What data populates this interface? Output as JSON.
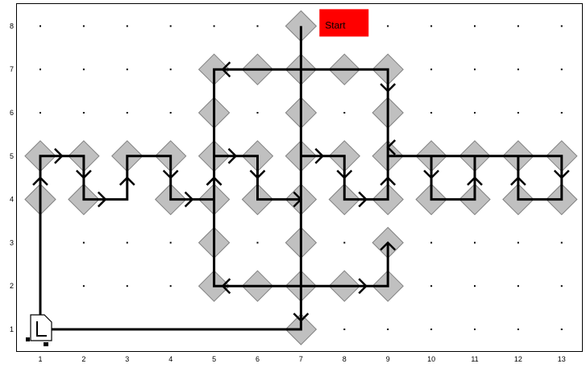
{
  "grid": {
    "cols": 13,
    "rows": 8,
    "x_labels": [
      "1",
      "2",
      "3",
      "4",
      "5",
      "6",
      "7",
      "8",
      "9",
      "10",
      "11",
      "12",
      "13"
    ],
    "y_labels": [
      "1",
      "2",
      "3",
      "4",
      "5",
      "6",
      "7",
      "8"
    ]
  },
  "start": {
    "label": "Start",
    "color": "#ff0000",
    "col": 8,
    "row": 8
  },
  "colors": {
    "tile_fill": "#c0c0c0",
    "tile_stroke": "#808080",
    "path": "#000000",
    "border": "#000000"
  },
  "tiles": [
    [
      7,
      8
    ],
    [
      5,
      7
    ],
    [
      6,
      7
    ],
    [
      7,
      7
    ],
    [
      8,
      7
    ],
    [
      9,
      7
    ],
    [
      5,
      6
    ],
    [
      7,
      6
    ],
    [
      9,
      6
    ],
    [
      1,
      5
    ],
    [
      2,
      5
    ],
    [
      3,
      5
    ],
    [
      4,
      5
    ],
    [
      5,
      5
    ],
    [
      6,
      5
    ],
    [
      7,
      5
    ],
    [
      8,
      5
    ],
    [
      9,
      5
    ],
    [
      10,
      5
    ],
    [
      11,
      5
    ],
    [
      12,
      5
    ],
    [
      13,
      5
    ],
    [
      1,
      4
    ],
    [
      2,
      4
    ],
    [
      4,
      4
    ],
    [
      5,
      4
    ],
    [
      6,
      4
    ],
    [
      7,
      4
    ],
    [
      8,
      4
    ],
    [
      9,
      4
    ],
    [
      10,
      4
    ],
    [
      11,
      4
    ],
    [
      12,
      4
    ],
    [
      13,
      4
    ],
    [
      5,
      3
    ],
    [
      7,
      3
    ],
    [
      9,
      3
    ],
    [
      5,
      2
    ],
    [
      6,
      2
    ],
    [
      7,
      2
    ],
    [
      8,
      2
    ],
    [
      9,
      2
    ],
    [
      7,
      1
    ]
  ],
  "path": [
    [
      7,
      8
    ],
    [
      7,
      1
    ],
    [
      1,
      1
    ],
    [
      1,
      5
    ],
    [
      2,
      5
    ],
    [
      2,
      4
    ],
    [
      3,
      4
    ],
    [
      3,
      5
    ],
    [
      4,
      5
    ],
    [
      4,
      4
    ],
    [
      5,
      4
    ],
    [
      5,
      7
    ],
    [
      9,
      7
    ],
    [
      9,
      5
    ],
    [
      13,
      5
    ],
    [
      13,
      4
    ],
    [
      12,
      4
    ],
    [
      12,
      5
    ],
    [
      11,
      5
    ],
    [
      11,
      4
    ],
    [
      10,
      4
    ],
    [
      10,
      5
    ],
    [
      9,
      5
    ],
    [
      9,
      4
    ],
    [
      8,
      4
    ],
    [
      8,
      5
    ],
    [
      7,
      5
    ],
    [
      7,
      4
    ],
    [
      6,
      4
    ],
    [
      6,
      5
    ],
    [
      5,
      5
    ],
    [
      5,
      2
    ],
    [
      9,
      2
    ],
    [
      9,
      3
    ]
  ],
  "arrows": [
    [
      1,
      4.5,
      "N"
    ],
    [
      1.5,
      5,
      "E"
    ],
    [
      2,
      4.5,
      "S"
    ],
    [
      2.5,
      4,
      "E"
    ],
    [
      3,
      4.5,
      "N"
    ],
    [
      4,
      4.5,
      "S"
    ],
    [
      4.5,
      4,
      "E"
    ],
    [
      5,
      4.5,
      "N"
    ],
    [
      5.2,
      7,
      "W"
    ],
    [
      9,
      6.5,
      "S"
    ],
    [
      9,
      5.2,
      "W"
    ],
    [
      13,
      4.5,
      "S"
    ],
    [
      12,
      4.5,
      "N"
    ],
    [
      11,
      4.5,
      "N"
    ],
    [
      10,
      4.5,
      "S"
    ],
    [
      9,
      4.5,
      "N"
    ],
    [
      8.5,
      4,
      "E"
    ],
    [
      8,
      4.5,
      "S"
    ],
    [
      7.5,
      5,
      "E"
    ],
    [
      7,
      4,
      "E"
    ],
    [
      6,
      4.5,
      "S"
    ],
    [
      5.5,
      5,
      "E"
    ],
    [
      5,
      4.5,
      "N"
    ],
    [
      5.2,
      2,
      "W"
    ],
    [
      8.5,
      2,
      "E"
    ],
    [
      9,
      3,
      "N"
    ],
    [
      7,
      1.2,
      "S"
    ]
  ],
  "turtle": {
    "icon": "turtle-icon",
    "col": 1,
    "row": 1
  }
}
